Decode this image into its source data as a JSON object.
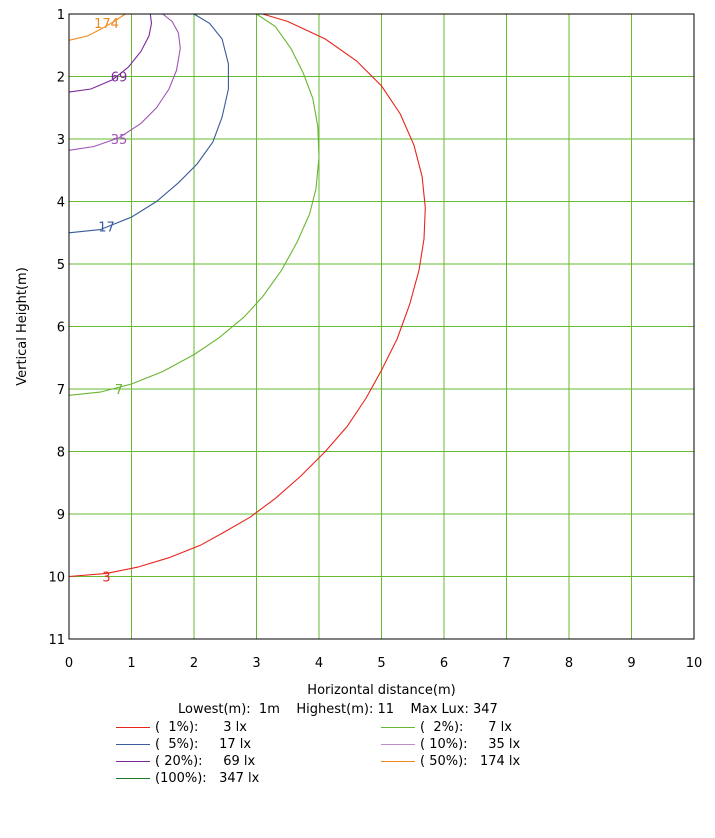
{
  "chart_data": {
    "type": "line",
    "xlabel": "Horizontal distance(m)",
    "ylabel": "Vertical Height(m)",
    "xlim": [
      0,
      10
    ],
    "ylim": [
      1,
      11
    ],
    "y_inverted": true,
    "x_ticks": [
      "0",
      "1",
      "2",
      "3",
      "4",
      "5",
      "6",
      "7",
      "8",
      "9",
      "10"
    ],
    "y_ticks": [
      "1",
      "2",
      "3",
      "4",
      "5",
      "6",
      "7",
      "8",
      "9",
      "10",
      "11"
    ],
    "grid": true,
    "grid_color": "#66bb33",
    "series": [
      {
        "name": "3",
        "color": "#e8241c",
        "x": [
          0.0,
          0.6,
          1.1,
          1.6,
          2.1,
          2.5,
          2.9,
          3.3,
          3.7,
          4.1,
          4.45,
          4.75,
          5.0,
          5.25,
          5.45,
          5.6,
          5.68,
          5.7,
          5.65,
          5.52,
          5.3,
          5.0,
          4.6,
          4.1,
          3.5,
          3.1
        ],
        "y": [
          10.0,
          9.95,
          9.85,
          9.7,
          9.5,
          9.28,
          9.05,
          8.75,
          8.4,
          8.0,
          7.6,
          7.15,
          6.7,
          6.2,
          5.65,
          5.1,
          4.6,
          4.1,
          3.6,
          3.1,
          2.6,
          2.15,
          1.75,
          1.4,
          1.12,
          1.0
        ]
      },
      {
        "name": "7",
        "color": "#6ab532",
        "x": [
          0.0,
          0.5,
          1.0,
          1.5,
          2.0,
          2.4,
          2.8,
          3.1,
          3.4,
          3.65,
          3.85,
          3.95,
          4.0,
          3.98,
          3.9,
          3.75,
          3.55,
          3.3,
          3.0
        ],
        "y": [
          7.1,
          7.05,
          6.92,
          6.72,
          6.45,
          6.18,
          5.85,
          5.52,
          5.1,
          4.65,
          4.2,
          3.8,
          3.3,
          2.8,
          2.35,
          1.95,
          1.55,
          1.2,
          1.0
        ]
      },
      {
        "name": "17",
        "color": "#3a5b9c",
        "x": [
          0.0,
          0.5,
          1.0,
          1.4,
          1.75,
          2.05,
          2.3,
          2.45,
          2.55,
          2.55,
          2.45,
          2.25,
          2.0
        ],
        "y": [
          4.5,
          4.45,
          4.25,
          4.0,
          3.7,
          3.4,
          3.05,
          2.65,
          2.2,
          1.8,
          1.4,
          1.15,
          1.0
        ]
      },
      {
        "name": "35",
        "color": "#a055b8",
        "x": [
          0.0,
          0.4,
          0.8,
          1.15,
          1.4,
          1.6,
          1.72,
          1.78,
          1.75,
          1.65,
          1.5
        ],
        "y": [
          3.18,
          3.12,
          2.98,
          2.75,
          2.5,
          2.2,
          1.9,
          1.55,
          1.3,
          1.12,
          1.0
        ]
      },
      {
        "name": "69",
        "color": "#7a2a9a",
        "x": [
          0.0,
          0.35,
          0.7,
          0.95,
          1.15,
          1.28,
          1.32,
          1.3
        ],
        "y": [
          2.25,
          2.2,
          2.05,
          1.85,
          1.6,
          1.35,
          1.15,
          1.0
        ]
      },
      {
        "name": "174",
        "color": "#f08a1e",
        "x": [
          0.0,
          0.3,
          0.55,
          0.75,
          0.9
        ],
        "y": [
          1.42,
          1.35,
          1.22,
          1.1,
          1.0
        ]
      }
    ],
    "contour_labels": [
      {
        "text": "174",
        "x": 0.6,
        "y": 1.14,
        "color": "#f08a1e"
      },
      {
        "text": "69",
        "x": 0.8,
        "y": 2.0,
        "color": "#7a2a9a"
      },
      {
        "text": "35",
        "x": 0.8,
        "y": 3.0,
        "color": "#a055b8"
      },
      {
        "text": "17",
        "x": 0.6,
        "y": 4.4,
        "color": "#3a5b9c"
      },
      {
        "text": "7",
        "x": 0.8,
        "y": 7.0,
        "color": "#6ab532"
      },
      {
        "text": "3",
        "x": 0.6,
        "y": 10.0,
        "color": "#e8241c"
      }
    ]
  },
  "legend": {
    "header": "Lowest(m):  1m    Highest(m): 11    Max Lux: 347",
    "items": [
      {
        "text": "(  1%):      3 lx",
        "color": "#e8241c"
      },
      {
        "text": "(  2%):      7 lx",
        "color": "#6ab532"
      },
      {
        "text": "(  5%):     17 lx",
        "color": "#3a5b9c"
      },
      {
        "text": "( 10%):     35 lx",
        "color": "#c08ccc"
      },
      {
        "text": "( 20%):     69 lx",
        "color": "#7a2a9a"
      },
      {
        "text": "( 50%):   174 lx",
        "color": "#f08a1e"
      },
      {
        "text": "(100%):   347 lx",
        "color": "#1e7a2a"
      }
    ]
  }
}
